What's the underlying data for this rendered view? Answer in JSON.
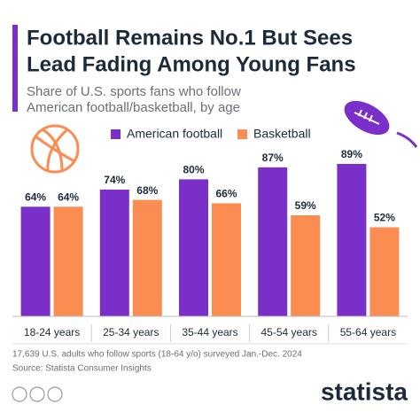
{
  "chart_data": {
    "type": "bar",
    "title": [
      "Football Remains No.1 But Sees",
      "Lead Fading Among Young Fans"
    ],
    "subtitle": [
      "Share of U.S. sports fans who follow",
      "American football/basketball, by age"
    ],
    "categories": [
      "18-24 years",
      "25-34 years",
      "35-44 years",
      "45-54 years",
      "55-64 years"
    ],
    "series": [
      {
        "name": "American football",
        "color": "#7b2fc9",
        "values": [
          64,
          74,
          80,
          87,
          89
        ],
        "value_labels": [
          "64%",
          "74%",
          "80%",
          "87%",
          "89%"
        ]
      },
      {
        "name": "Basketball",
        "color": "#fb8c52",
        "values": [
          64,
          68,
          66,
          59,
          52
        ],
        "value_labels": [
          "64%",
          "68%",
          "66%",
          "59%",
          "52%"
        ]
      }
    ],
    "note": "17,639 U.S. adults who follow sports (18-64 y/o) surveyed Jan.-Dec. 2024",
    "source": "Source: Statista Consumer Insights",
    "brand": "statista"
  }
}
